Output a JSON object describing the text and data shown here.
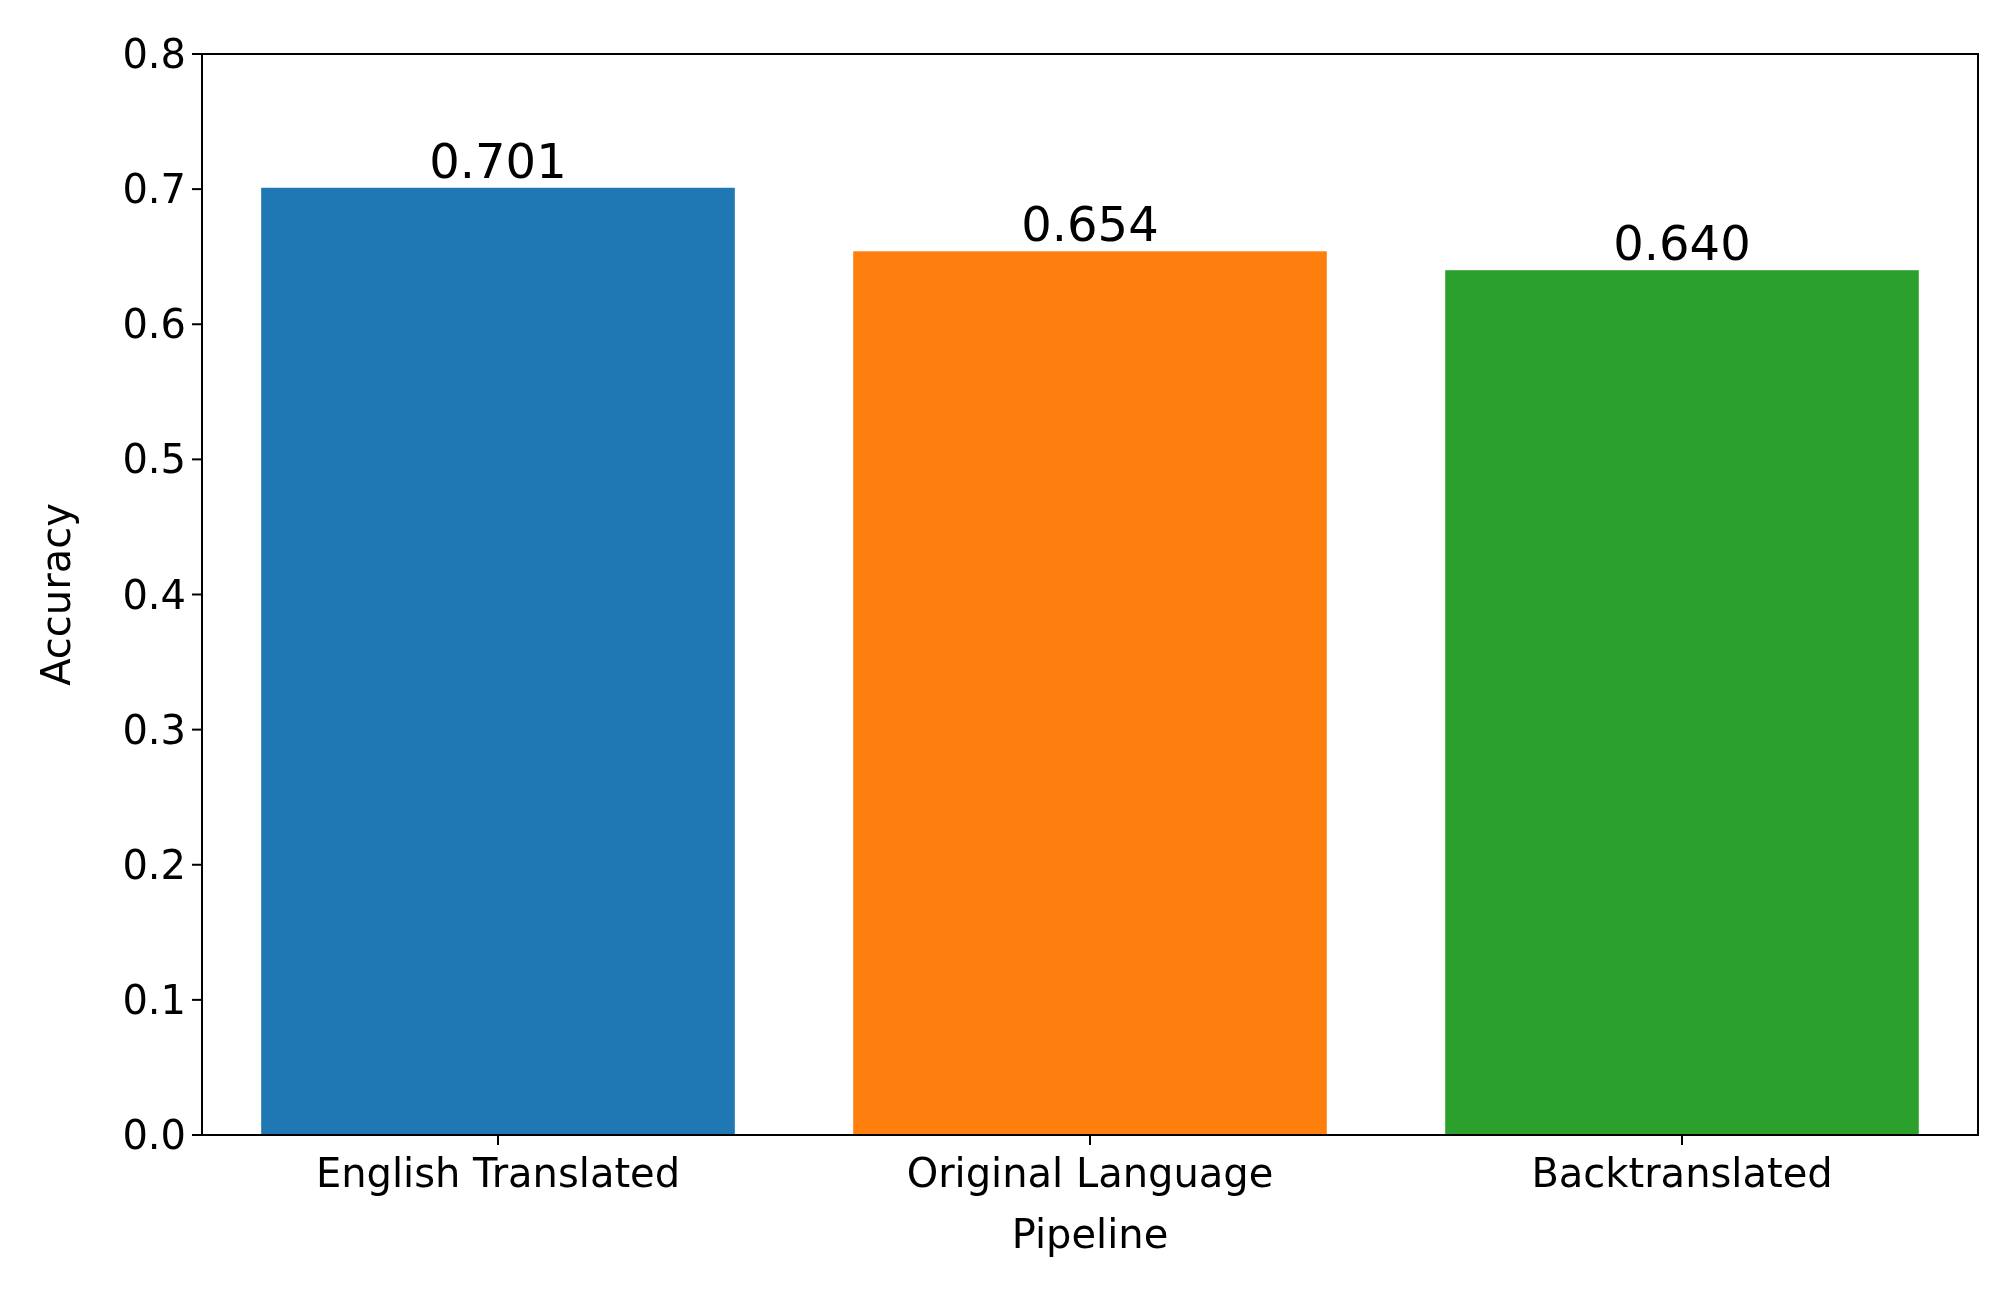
{
  "chart_data": {
    "type": "bar",
    "xlabel": "Pipeline",
    "ylabel": "Accuracy",
    "categories": [
      "English Translated",
      "Original Language",
      "Backtranslated"
    ],
    "values": [
      0.701,
      0.654,
      0.64
    ],
    "value_labels": [
      "0.701",
      "0.654",
      "0.640"
    ],
    "colors": [
      "#1f77b4",
      "#ff7f0e",
      "#2ca02c"
    ],
    "ylim": [
      0,
      0.8
    ],
    "yticks": [
      {
        "value": 0,
        "label": "0.0"
      },
      0.1,
      0.2,
      0.3,
      0.4,
      0.5,
      0.6,
      0.7,
      0.8
    ],
    "grid": false
  }
}
